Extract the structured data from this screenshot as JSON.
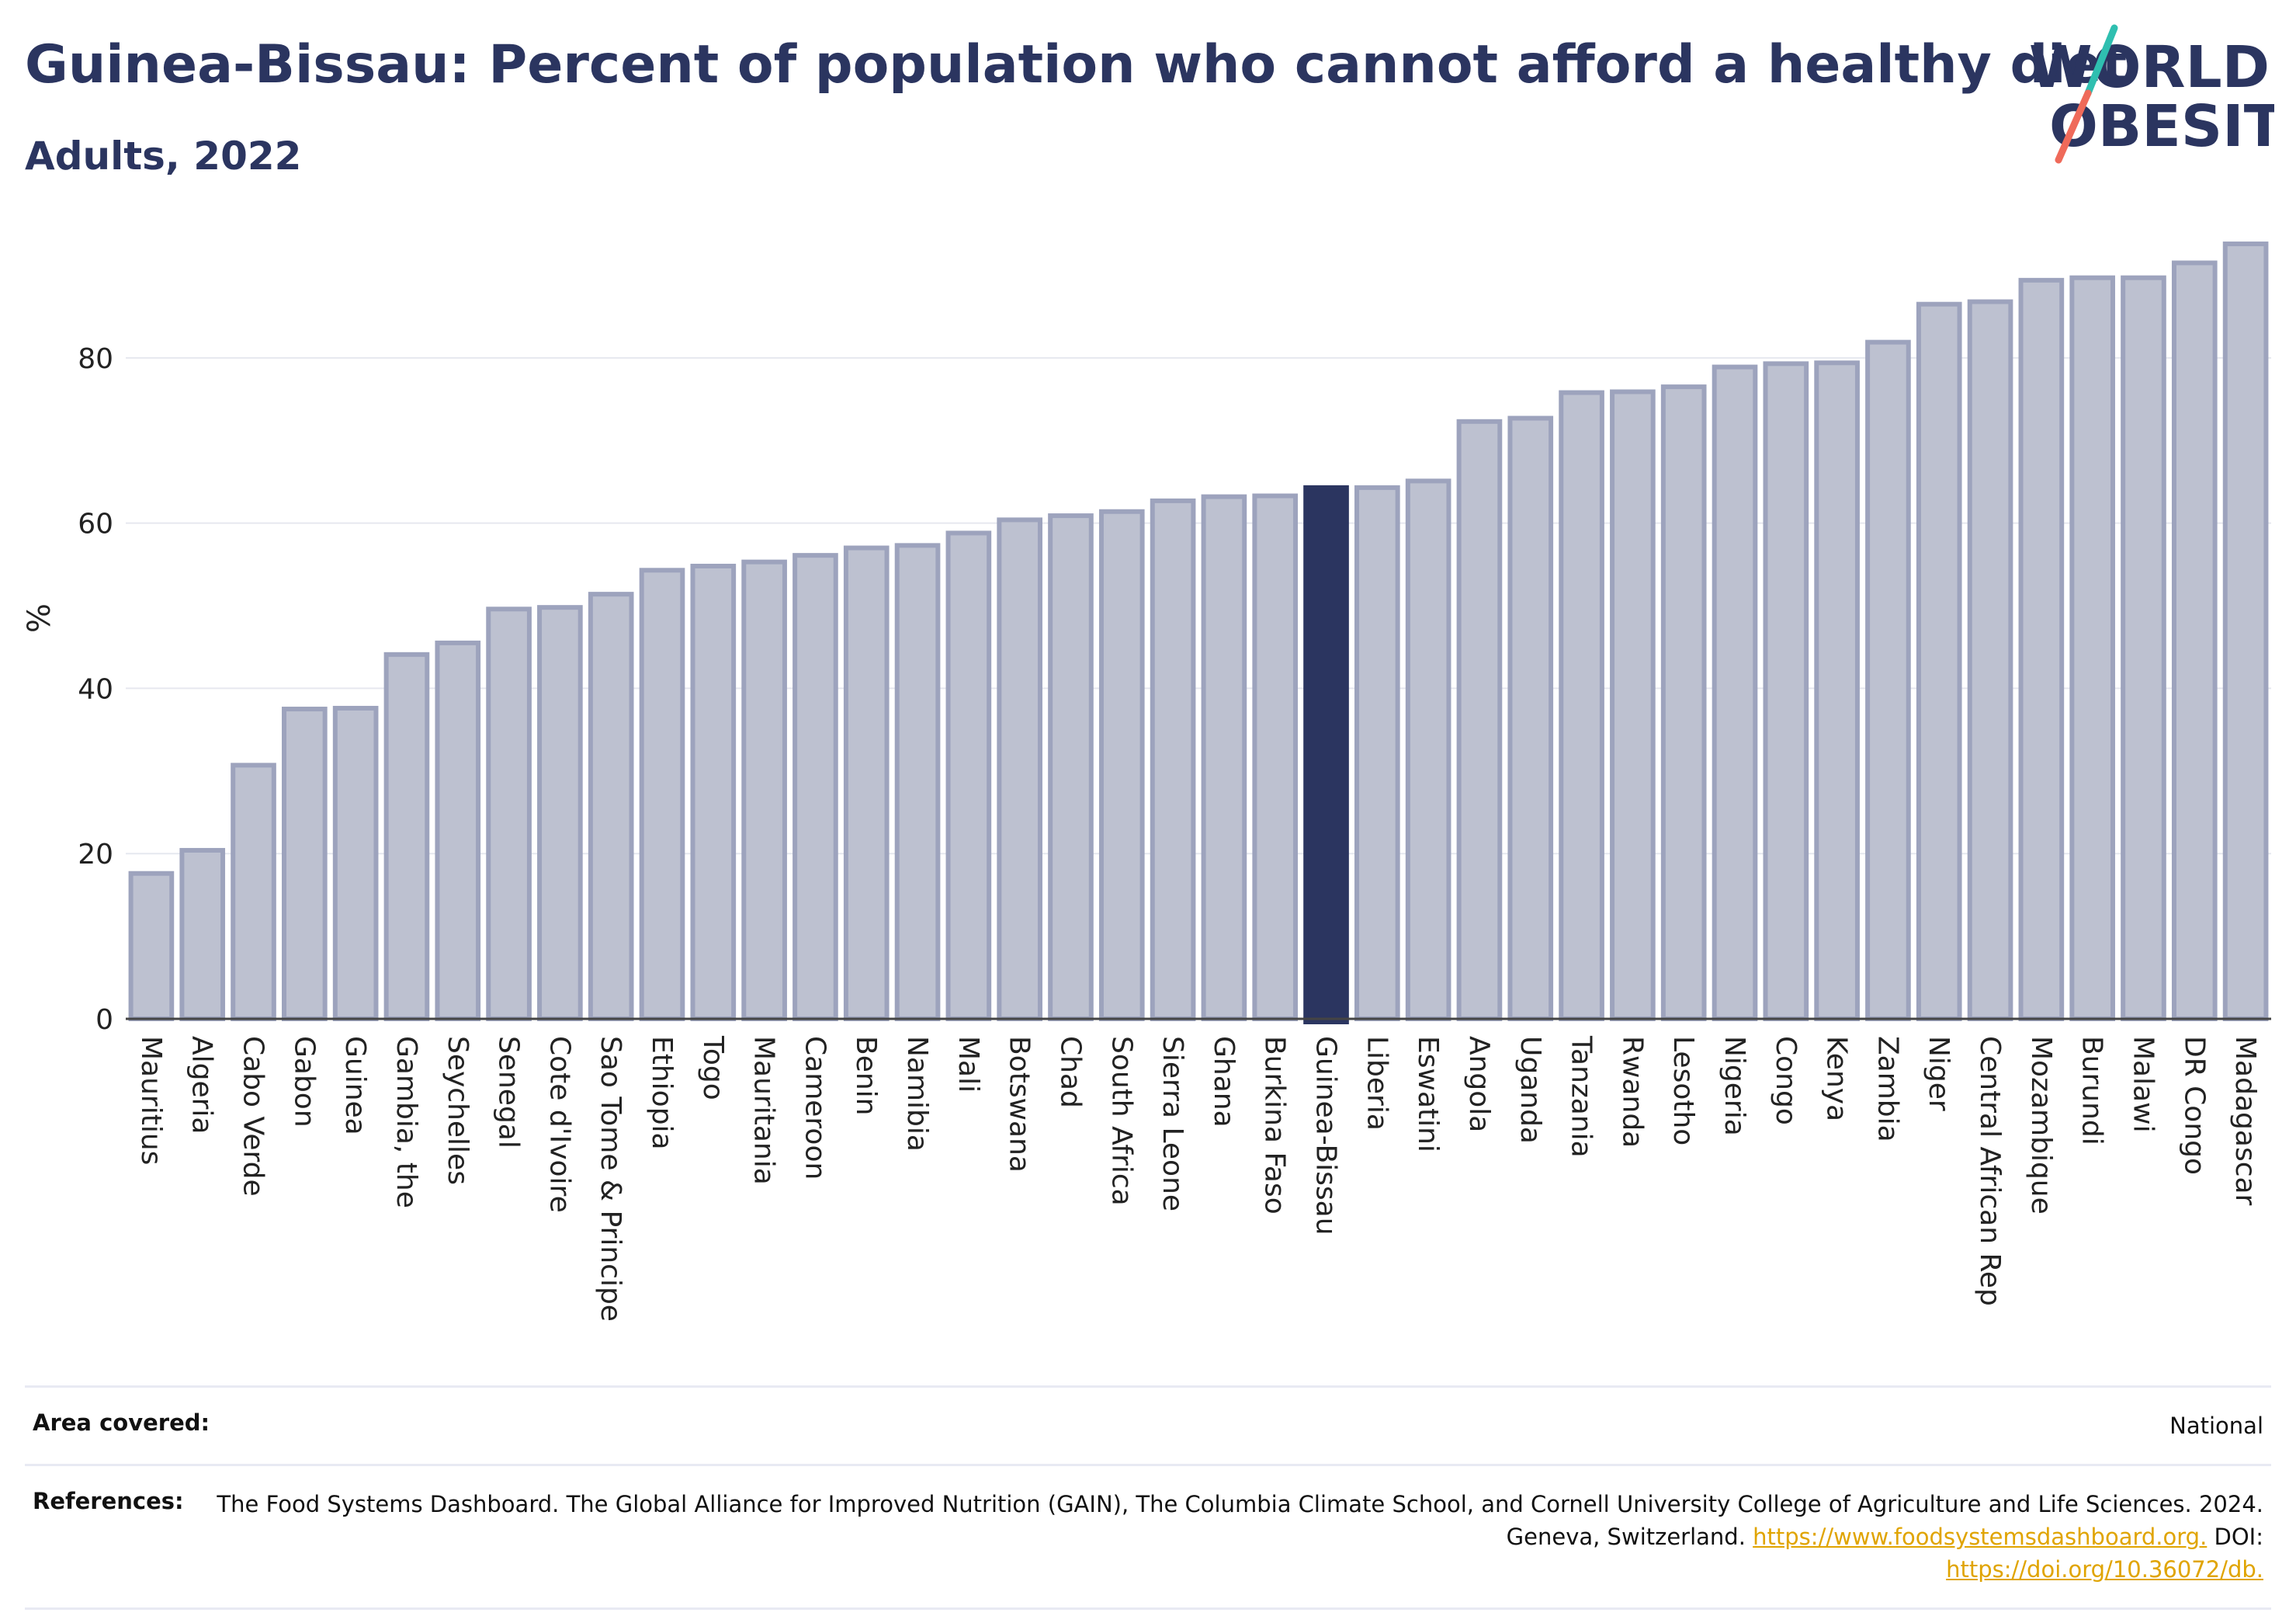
{
  "header": {
    "title": "Guinea-Bissau: Percent of population who cannot afford a healthy diet",
    "subtitle": "Adults, 2022"
  },
  "logo": {
    "line1": "WORLD",
    "line2": "OBESITY",
    "slash_colors": [
      "#2fbfb0",
      "#ef6a5a"
    ]
  },
  "chart_data": {
    "type": "bar",
    "ylabel": "%",
    "ylim": [
      0,
      97
    ],
    "yticks": [
      0,
      20,
      40,
      60,
      80
    ],
    "grid": true,
    "highlight": "Guinea-Bissau",
    "colors": {
      "bar": "#bdc1d0",
      "bar_edge": "#9da3bd",
      "highlight": "#2b3560"
    },
    "categories": [
      "Mauritius",
      "Algeria",
      "Cabo Verde",
      "Gabon",
      "Guinea",
      "Gambia, the",
      "Seychelles",
      "Senegal",
      "Cote d'Ivoire",
      "Sao Tome & Principe",
      "Ethiopia",
      "Togo",
      "Mauritania",
      "Cameroon",
      "Benin",
      "Namibia",
      "Mali",
      "Botswana",
      "Chad",
      "South Africa",
      "Sierra Leone",
      "Ghana",
      "Burkina Faso",
      "Guinea-Bissau",
      "Liberia",
      "Eswatini",
      "Angola",
      "Uganda",
      "Tanzania",
      "Rwanda",
      "Lesotho",
      "Nigeria",
      "Congo",
      "Kenya",
      "Zambia",
      "Niger",
      "Central African Rep",
      "Mozambique",
      "Burundi",
      "Malawi",
      "DR Congo",
      "Madagascar"
    ],
    "values": [
      17.6,
      20.4,
      30.7,
      37.5,
      37.6,
      44.1,
      45.5,
      49.6,
      49.8,
      51.4,
      54.3,
      54.8,
      55.3,
      56.1,
      57.0,
      57.3,
      58.8,
      60.4,
      60.9,
      61.4,
      62.7,
      63.2,
      63.3,
      64.3,
      64.3,
      65.1,
      72.3,
      72.7,
      75.8,
      75.9,
      76.5,
      78.9,
      79.3,
      79.4,
      81.9,
      86.5,
      86.8,
      89.4,
      89.7,
      89.7,
      91.5,
      93.8
    ]
  },
  "footer": {
    "area_label": "Area covered:",
    "area_value": "National",
    "ref_label": "References:",
    "ref_text": "The Food Systems Dashboard. The Global Alliance for Improved Nutrition (GAIN), The Columbia Climate School, and Cornell University College of Agriculture and Life Sciences. 2024. Geneva, Switzerland.",
    "ref_link1": "https://www.foodsystemsdashboard.org.",
    "ref_doi": "DOI:",
    "ref_link2": "https://doi.org/10.36072/db."
  }
}
